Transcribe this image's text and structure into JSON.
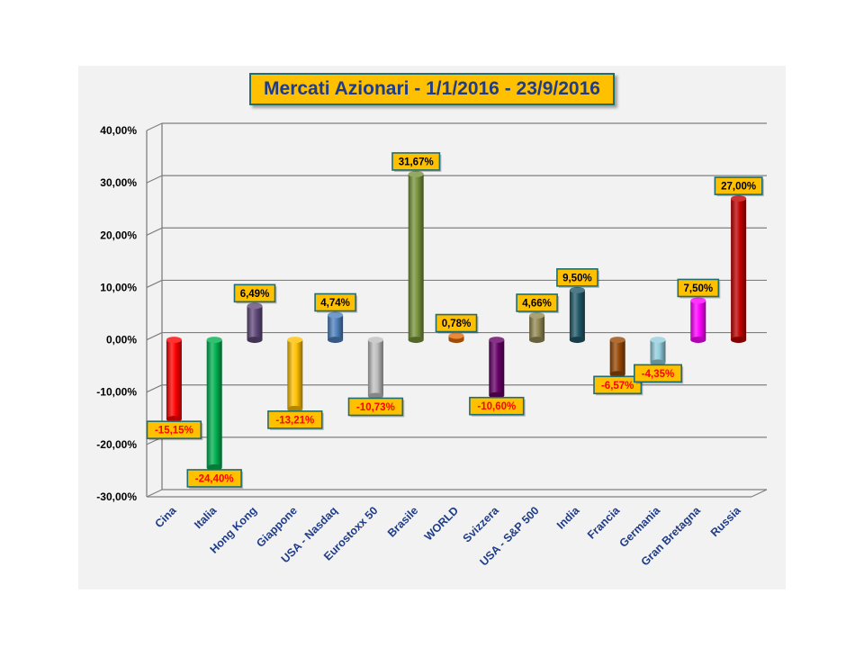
{
  "chart_data": {
    "type": "bar",
    "title": "Mercati Azionari - 1/1/2016 - 23/9/2016",
    "xlabel": "",
    "ylabel": "",
    "ylim": [
      -0.3,
      0.4
    ],
    "yticks": [
      {
        "value": 0.4,
        "label": "40,00%"
      },
      {
        "value": 0.3,
        "label": "30,00%"
      },
      {
        "value": 0.2,
        "label": "20,00%"
      },
      {
        "value": 0.1,
        "label": "10,00%"
      },
      {
        "value": 0.0,
        "label": "0,00%"
      },
      {
        "value": -0.1,
        "label": "-10,00%"
      },
      {
        "value": -0.2,
        "label": "-20,00%"
      },
      {
        "value": -0.3,
        "label": "-30,00%"
      }
    ],
    "grid": true,
    "legend": "none",
    "categories": [
      "Cina",
      "Italia",
      "Hong Kong",
      "Giappone",
      "USA - Nasdaq",
      "Eurostoxx 50",
      "Brasile",
      "WORLD",
      "Svizzera",
      "USA - S&P 500",
      "India",
      "Francia",
      "Germania",
      "Gran Bretagna",
      "Russia"
    ],
    "values": [
      -0.1515,
      -0.244,
      0.0649,
      -0.1321,
      0.0474,
      -0.1073,
      0.3167,
      0.0078,
      -0.106,
      0.0466,
      0.095,
      -0.0657,
      -0.0435,
      0.075,
      0.27
    ],
    "data_labels": [
      "-15,15%",
      "-24,40%",
      "6,49%",
      "-13,21%",
      "4,74%",
      "-10,73%",
      "31,67%",
      "0,78%",
      "-10,60%",
      "4,66%",
      "9,50%",
      "-6,57%",
      "-4,35%",
      "7,50%",
      "27,00%"
    ],
    "colors": [
      "#ff0000",
      "#00b050",
      "#604a7b",
      "#ffc000",
      "#4f81bd",
      "#bfbfbf",
      "#77933c",
      "#e36c09",
      "#660066",
      "#948a54",
      "#215968",
      "#974806",
      "#93cddd",
      "#ff00ff",
      "#c00000"
    ],
    "label_box_color": "#ffc000",
    "label_border_color": "#1f6d6d",
    "positive_label_color": "#000000",
    "negative_label_color": "#ff0000",
    "tick_label_color": "#1f3c88"
  }
}
